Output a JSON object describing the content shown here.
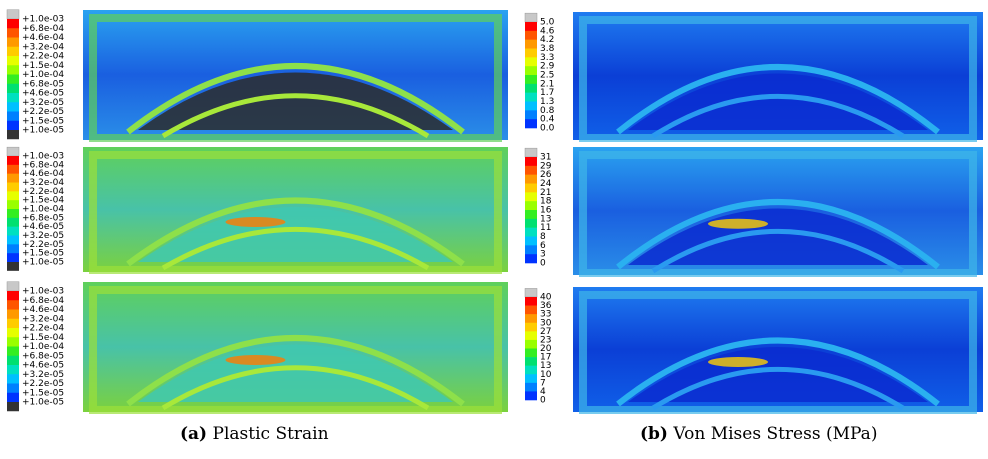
{
  "left_legends": [
    [
      "+1.0e-03",
      "+6.8e-04",
      "+4.6e-04",
      "+3.2e-04",
      "+2.2e-04",
      "+1.5e-04",
      "+1.0e-04",
      "+6.8e-05",
      "+4.6e-05",
      "+3.2e-05",
      "+2.2e-05",
      "+1.5e-05",
      "+1.0e-05"
    ],
    [
      "+1.0e-03",
      "+6.8e-04",
      "+4.6e-04",
      "+3.2e-04",
      "+2.2e-04",
      "+1.5e-04",
      "+1.0e-04",
      "+6.8e-05",
      "+4.6e-05",
      "+3.2e-05",
      "+2.2e-05",
      "+1.5e-05",
      "+1.0e-05"
    ],
    [
      "+1.0e-03",
      "+6.8e-04",
      "+4.6e-04",
      "+3.2e-04",
      "+2.2e-04",
      "+1.5e-04",
      "+1.0e-04",
      "+6.8e-05",
      "+4.6e-05",
      "+3.2e-05",
      "+2.2e-05",
      "+1.5e-05",
      "+1.0e-05"
    ]
  ],
  "right_legends": [
    [
      "5.0",
      "4.6",
      "4.2",
      "3.8",
      "3.3",
      "2.9",
      "2.5",
      "2.1",
      "1.7",
      "1.3",
      "0.8",
      "0.4",
      "0.0"
    ],
    [
      "31",
      "29",
      "26",
      "24",
      "21",
      "18",
      "16",
      "13",
      "11",
      "8",
      "6",
      "3",
      "0"
    ],
    [
      "40",
      "36",
      "33",
      "30",
      "27",
      "23",
      "20",
      "17",
      "13",
      "10",
      "7",
      "4",
      "0"
    ]
  ],
  "captions": [
    {
      "label": "(a)",
      "text": "Plastic Strain"
    },
    {
      "label": "(b)",
      "text": "Von Mises Stress (MPa)"
    }
  ]
}
